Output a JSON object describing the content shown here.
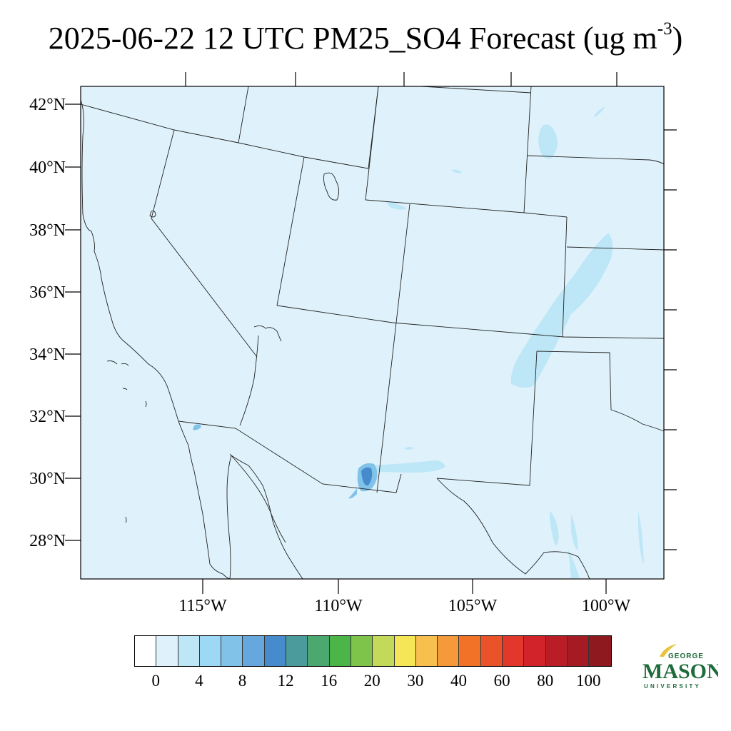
{
  "title": {
    "text": "2025-06-22 12 UTC PM25_SO4 Forecast (ug m",
    "exponent": "-3",
    "close": ")"
  },
  "lat_labels": [
    "42°N",
    "40°N",
    "38°N",
    "36°N",
    "34°N",
    "32°N",
    "30°N",
    "28°N"
  ],
  "lon_labels": [
    "115°W",
    "110°W",
    "105°W",
    "100°W"
  ],
  "colorbar": {
    "colors": [
      "#ffffff",
      "#dff2fb",
      "#bde6f7",
      "#9dd8f4",
      "#80c2e8",
      "#66a8dd",
      "#468bcc",
      "#4b9a9c",
      "#4ba86e",
      "#4bb548",
      "#7ec44a",
      "#c2d95a",
      "#f5e658",
      "#f7bf4e",
      "#f49a3a",
      "#f27228",
      "#ea522a",
      "#e2382b",
      "#d2232b",
      "#bb1d27",
      "#a51b24",
      "#8e1a1f"
    ],
    "labels": [
      "0",
      "4",
      "8",
      "12",
      "16",
      "20",
      "30",
      "40",
      "60",
      "80",
      "100"
    ]
  },
  "colors": {
    "background": "#dff2fb",
    "low_plume": "#bde6f7",
    "mid_plume": "#80c2e8",
    "high_plume": "#468bcc"
  },
  "logo": {
    "line1": "GEORGE",
    "line2": "MASON",
    "line3": "UNIVERSITY",
    "color": "#1f6b3a",
    "accent": "#e8c23a"
  }
}
